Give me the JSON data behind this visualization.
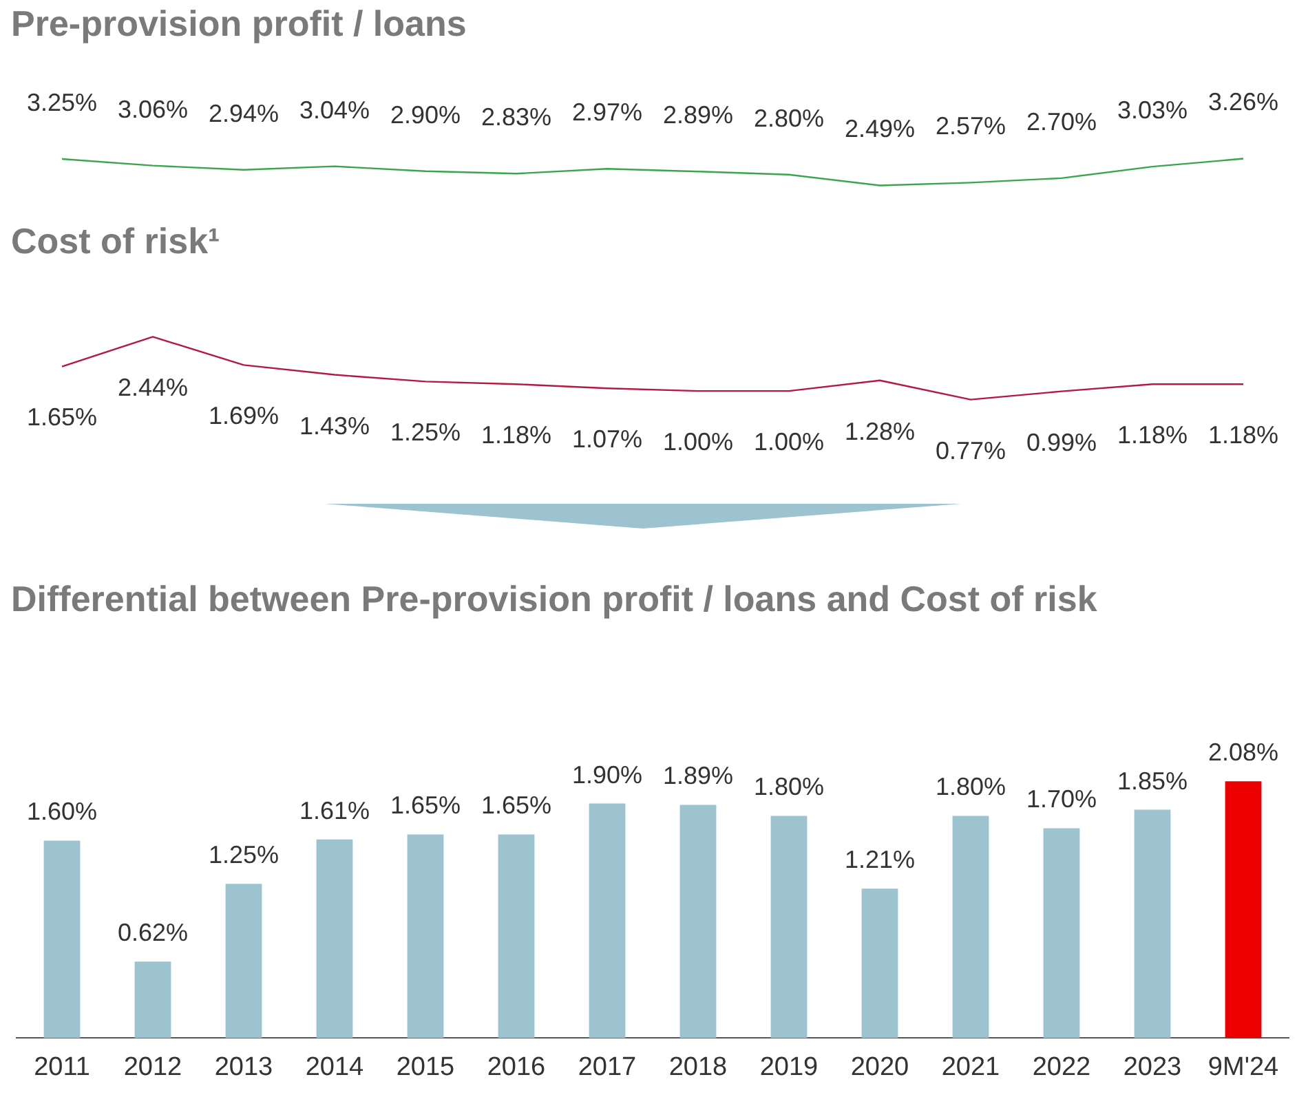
{
  "chart_data": [
    {
      "type": "line",
      "title": "Pre-provision profit / loans",
      "categories": [
        null,
        null,
        null,
        null,
        null,
        null,
        null,
        null,
        null,
        null,
        null,
        null,
        null,
        null
      ],
      "values": [
        3.25,
        3.06,
        2.94,
        3.04,
        2.9,
        2.83,
        2.97,
        2.89,
        2.8,
        2.49,
        2.57,
        2.7,
        3.03,
        3.26
      ],
      "value_labels": [
        "3.25%",
        "3.06%",
        "2.94%",
        "3.04%",
        "2.90%",
        "2.83%",
        "2.97%",
        "2.89%",
        "2.80%",
        "2.49%",
        "2.57%",
        "2.70%",
        "3.03%",
        "3.26%"
      ],
      "color": "#3aa64c",
      "tick_labels": false
    },
    {
      "type": "line",
      "title": "Cost of risk¹",
      "categories": [
        null,
        null,
        null,
        null,
        null,
        null,
        null,
        null,
        null,
        null,
        null,
        null,
        null,
        null
      ],
      "values": [
        1.65,
        2.44,
        1.69,
        1.43,
        1.25,
        1.18,
        1.07,
        1.0,
        1.0,
        1.28,
        0.77,
        0.99,
        1.18,
        1.18
      ],
      "value_labels": [
        "1.65%",
        "2.44%",
        "1.69%",
        "1.43%",
        "1.25%",
        "1.18%",
        "1.07%",
        "1.00%",
        "1.00%",
        "1.28%",
        "0.77%",
        "0.99%",
        "1.18%",
        "1.18%"
      ],
      "color": "#b5193f",
      "tick_labels": false
    },
    {
      "type": "bar",
      "title": "Differential between Pre-provision profit / loans and Cost of risk",
      "categories": [
        "2011",
        "2012",
        "2013",
        "2014",
        "2015",
        "2016",
        "2017",
        "2018",
        "2019",
        "2020",
        "2021",
        "2022",
        "2023",
        "9M'24"
      ],
      "values": [
        1.6,
        0.62,
        1.25,
        1.61,
        1.65,
        1.65,
        1.9,
        1.89,
        1.8,
        1.21,
        1.8,
        1.7,
        1.85,
        2.08
      ],
      "value_labels": [
        "1.60%",
        "0.62%",
        "1.25%",
        "1.61%",
        "1.65%",
        "1.65%",
        "1.90%",
        "1.89%",
        "1.80%",
        "1.21%",
        "1.80%",
        "1.70%",
        "1.85%",
        "2.08%"
      ],
      "colors": [
        "#9dc3d1",
        "#9dc3d1",
        "#9dc3d1",
        "#9dc3d1",
        "#9dc3d1",
        "#9dc3d1",
        "#9dc3d1",
        "#9dc3d1",
        "#9dc3d1",
        "#9dc3d1",
        "#9dc3d1",
        "#9dc3d1",
        "#9dc3d1",
        "#ec0000"
      ],
      "tick_labels": "x"
    }
  ]
}
